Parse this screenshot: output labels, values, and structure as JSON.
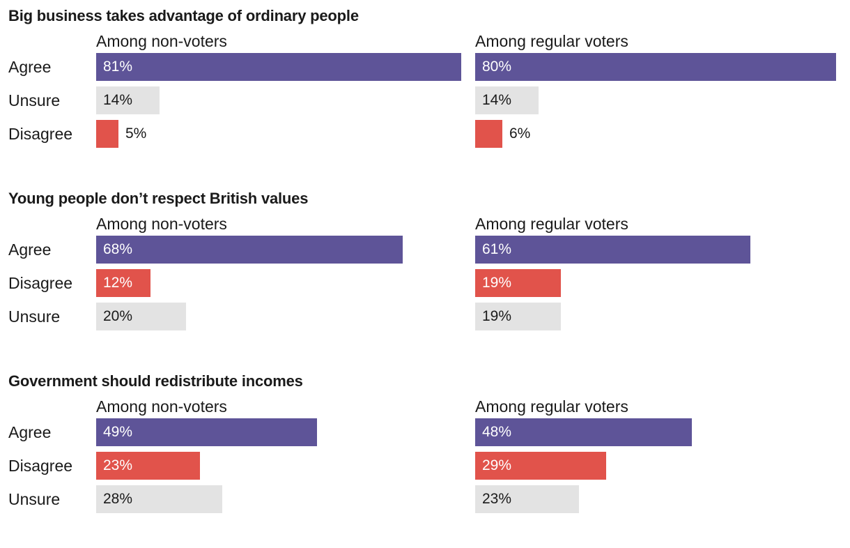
{
  "colors": {
    "agree": "#5e5498",
    "unsure": "#e3e3e3",
    "disagree": "#e1534b"
  },
  "chart_data": [
    {
      "type": "bar",
      "orientation": "horizontal",
      "title": "Big business takes advantage of ordinary people",
      "categories": [
        "Agree",
        "Unsure",
        "Disagree"
      ],
      "category_keys": [
        "agree",
        "unsure",
        "disagree"
      ],
      "series": [
        {
          "name": "Among non-voters",
          "values": [
            81,
            14,
            5
          ]
        },
        {
          "name": "Among regular voters",
          "values": [
            80,
            14,
            6
          ]
        }
      ],
      "unit": "%",
      "xlim": [
        0,
        81
      ]
    },
    {
      "type": "bar",
      "orientation": "horizontal",
      "title": "Young people don’t respect British values",
      "categories": [
        "Agree",
        "Disagree",
        "Unsure"
      ],
      "category_keys": [
        "agree",
        "disagree",
        "unsure"
      ],
      "series": [
        {
          "name": "Among non-voters",
          "values": [
            68,
            12,
            20
          ]
        },
        {
          "name": "Among regular voters",
          "values": [
            61,
            19,
            19
          ]
        }
      ],
      "unit": "%",
      "xlim": [
        0,
        81
      ]
    },
    {
      "type": "bar",
      "orientation": "horizontal",
      "title": "Government should redistribute incomes",
      "categories": [
        "Agree",
        "Disagree",
        "Unsure"
      ],
      "category_keys": [
        "agree",
        "disagree",
        "unsure"
      ],
      "series": [
        {
          "name": "Among non-voters",
          "values": [
            49,
            23,
            28
          ]
        },
        {
          "name": "Among regular voters",
          "values": [
            48,
            29,
            23
          ]
        }
      ],
      "unit": "%",
      "xlim": [
        0,
        81
      ]
    }
  ]
}
